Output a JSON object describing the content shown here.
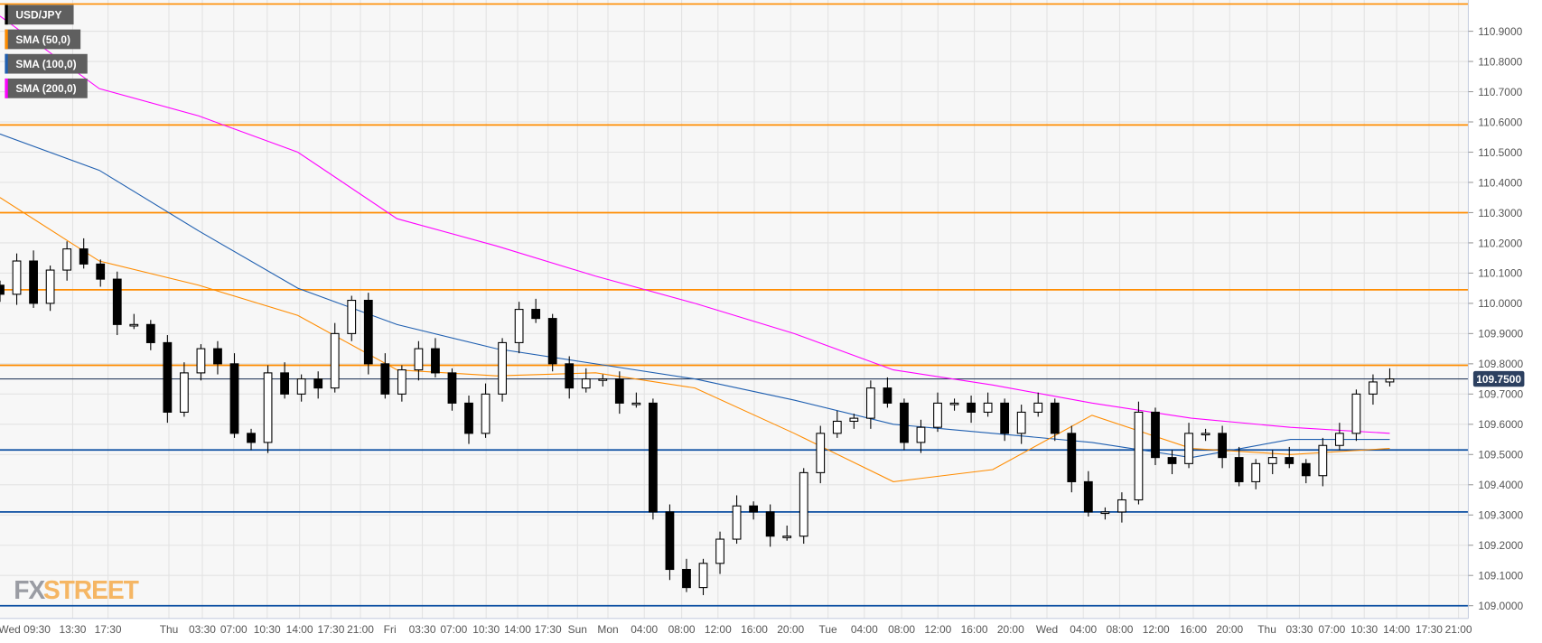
{
  "chart_data": {
    "type": "candlestick",
    "symbol": "USD/JPY",
    "ylim": [
      108.95,
      111.0
    ],
    "yticks": [
      "109.0000",
      "109.1000",
      "109.2000",
      "109.3000",
      "109.4000",
      "109.5000",
      "109.6000",
      "109.7000",
      "109.8000",
      "109.9000",
      "110.0000",
      "110.1000",
      "110.2000",
      "110.3000",
      "110.4000",
      "110.5000",
      "110.6000",
      "110.7000",
      "110.8000",
      "110.9000"
    ],
    "xticks": [
      "Wed 09:30",
      "13:30",
      "17:30",
      "Thu",
      "03:30",
      "07:00",
      "10:30",
      "14:00",
      "17:30",
      "21:00",
      "Fri",
      "03:30",
      "07:00",
      "10:30",
      "14:00",
      "17:30",
      "Sun",
      "Mon",
      "04:00",
      "08:00",
      "12:00",
      "16:00",
      "20:00",
      "Tue",
      "04:00",
      "08:00",
      "12:00",
      "16:00",
      "20:00",
      "Wed",
      "04:00",
      "08:00",
      "12:00",
      "16:00",
      "20:00",
      "Thu",
      "03:30",
      "07:00",
      "10:30",
      "14:00",
      "17:30",
      "21:00"
    ],
    "grid": true,
    "legend_placement": "top-left",
    "legend": [
      {
        "label": "USD/JPY",
        "color": "#000000"
      },
      {
        "label": "SMA (50,0)",
        "color": "#ff8c00"
      },
      {
        "label": "SMA (100,0)",
        "color": "#1f5fb0"
      },
      {
        "label": "SMA (200,0)",
        "color": "#ff00ff"
      }
    ],
    "close": [
      110.03,
      110.14,
      110.0,
      110.11,
      110.18,
      110.13,
      110.08,
      109.93,
      109.93,
      109.87,
      109.64,
      109.77,
      109.85,
      109.8,
      109.57,
      109.54,
      109.77,
      109.7,
      109.75,
      109.72,
      109.9,
      110.01,
      109.8,
      109.7,
      109.78,
      109.85,
      109.77,
      109.67,
      109.57,
      109.7,
      109.87,
      109.98,
      109.95,
      109.8,
      109.72,
      109.75,
      109.75,
      109.67,
      109.67,
      109.31,
      109.12,
      109.06,
      109.14,
      109.22,
      109.33,
      109.31,
      109.23,
      109.23,
      109.44,
      109.57,
      109.61,
      109.62,
      109.72,
      109.67,
      109.54,
      109.59,
      109.67,
      109.67,
      109.64,
      109.67,
      109.57,
      109.64,
      109.67,
      109.57,
      109.41,
      109.31,
      109.31,
      109.35,
      109.64,
      109.49,
      109.47,
      109.57,
      109.57,
      109.49,
      109.41,
      109.47,
      109.49,
      109.47,
      109.43,
      109.53,
      109.57,
      109.7,
      109.74,
      109.75
    ],
    "sma50": [
      110.35,
      110.14,
      110.06,
      109.96,
      109.78,
      109.76,
      109.77,
      109.72,
      109.57,
      109.41,
      109.45,
      109.63,
      109.52,
      109.5,
      109.52
    ],
    "sma100": [
      110.56,
      110.44,
      110.24,
      110.05,
      109.93,
      109.85,
      109.8,
      109.75,
      109.68,
      109.6,
      109.57,
      109.54,
      109.49,
      109.55,
      109.55
    ],
    "sma200": [
      110.95,
      110.71,
      110.62,
      110.5,
      110.28,
      110.19,
      110.09,
      110.0,
      109.9,
      109.78,
      109.73,
      109.67,
      109.62,
      109.59,
      109.57
    ],
    "resistance_levels": [
      110.99,
      110.59,
      110.3,
      110.045,
      109.795
    ],
    "support_levels": [
      109.515,
      109.31,
      109.0
    ],
    "resistance_color": "#ff8c00",
    "support_color": "#0b4ea2",
    "current_price": 109.75,
    "current_price_label": "109.7500",
    "current_price_color": "#2c4060"
  },
  "branding": {
    "logo_part1": "FX",
    "logo_part2": "STREET"
  }
}
